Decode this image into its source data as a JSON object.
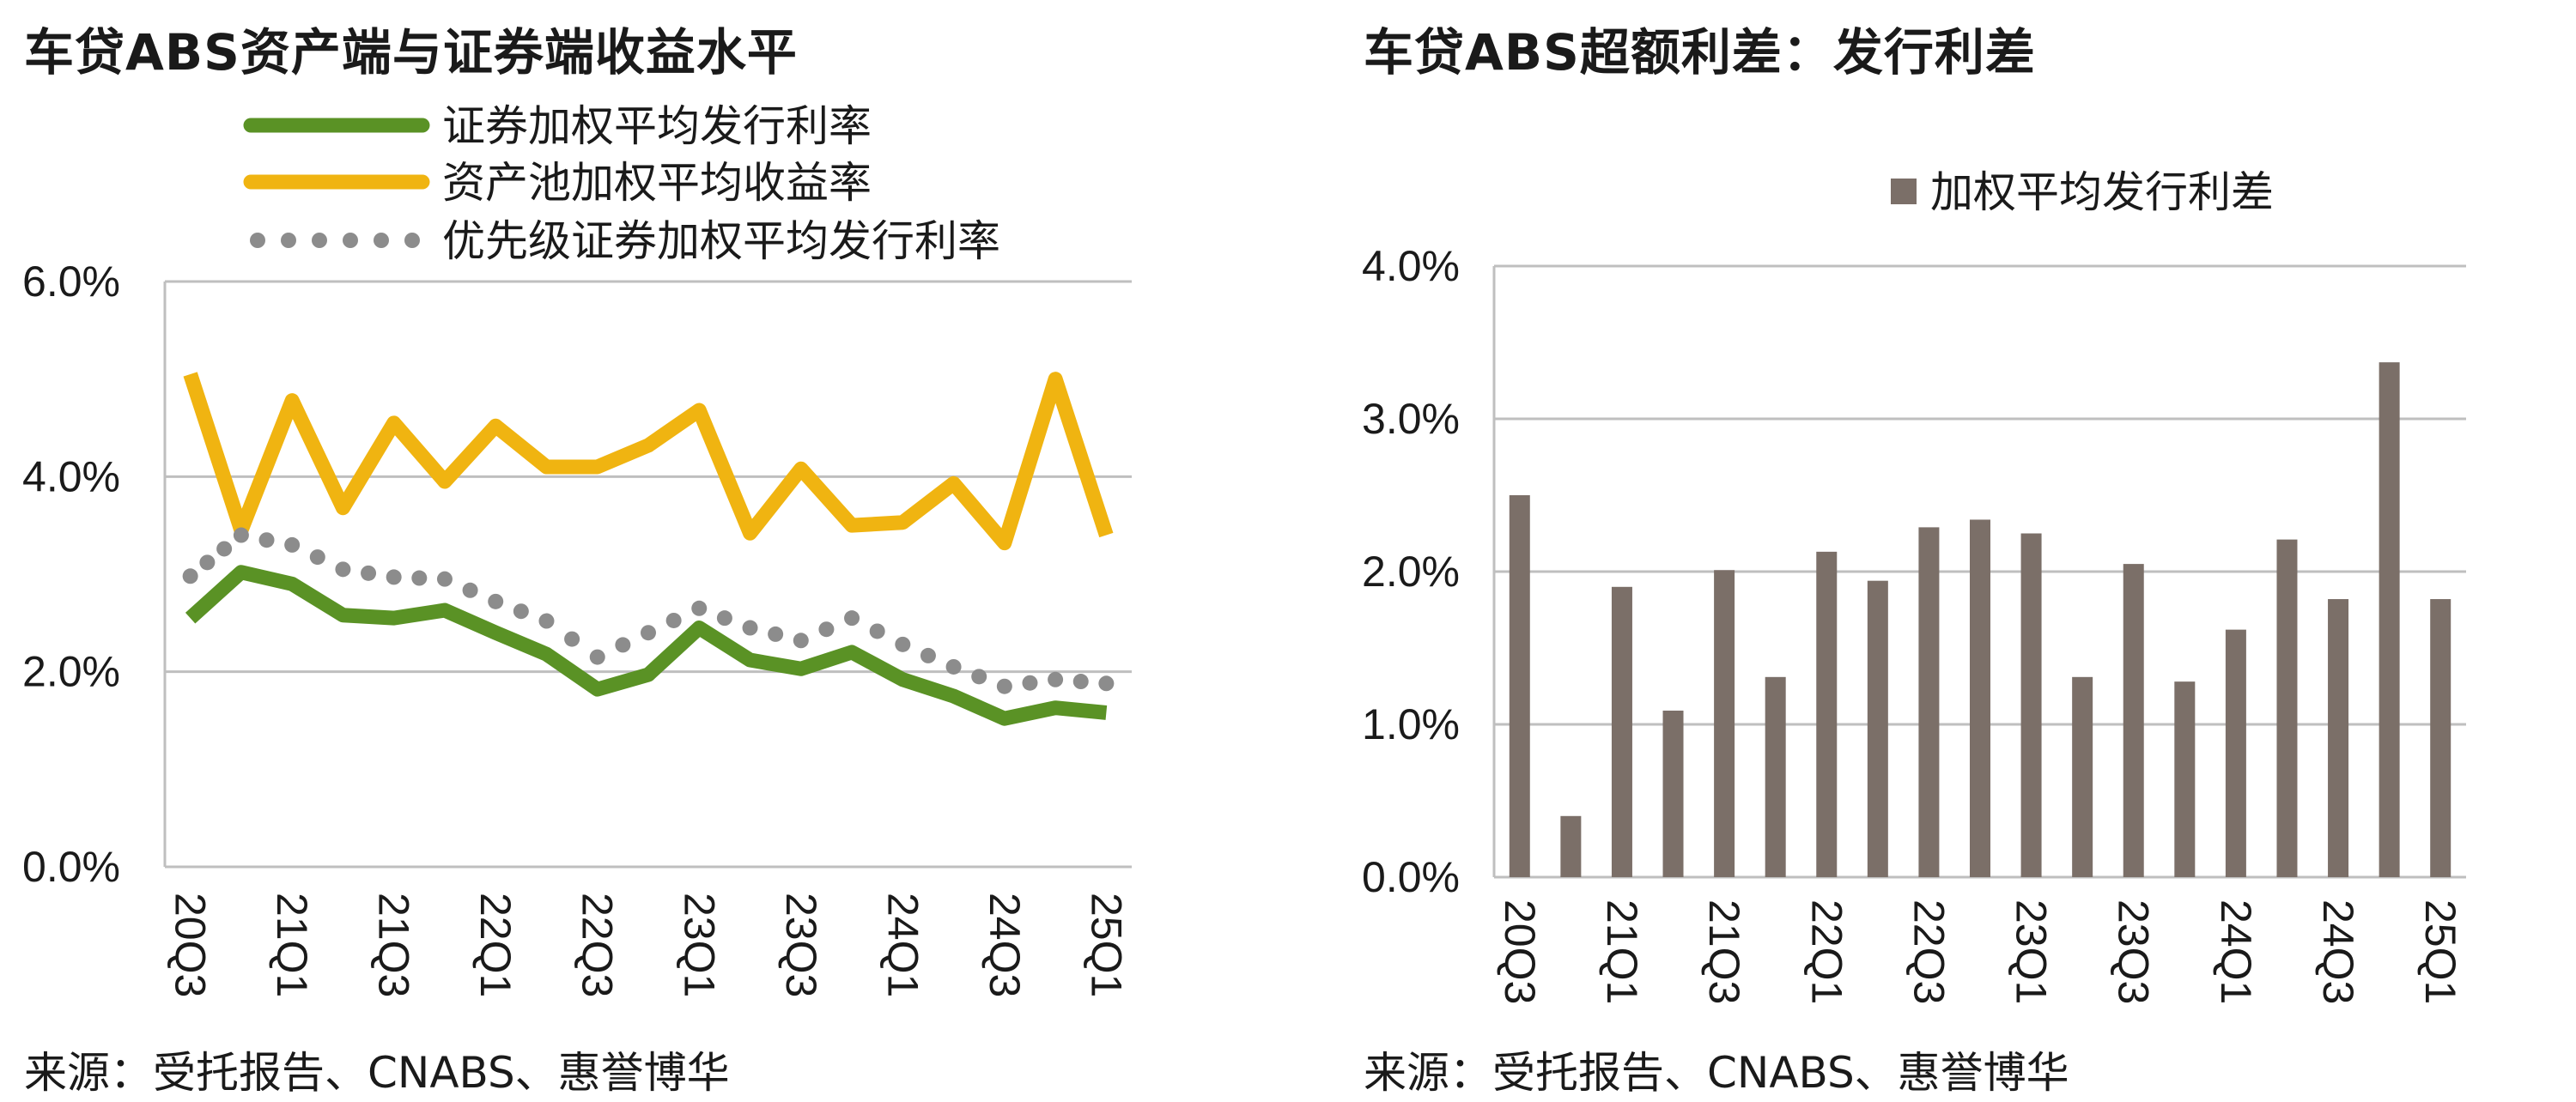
{
  "left": {
    "title": "车贷ABS资产端与证券端收益水平",
    "source": "来源：受托报告、CNABS、惠誉博华"
  },
  "right": {
    "title": "车贷ABS超额利差：发行利差",
    "source": "来源：受托报告、CNABS、惠誉博华"
  },
  "colors": {
    "green": "#5a9225",
    "gold": "#f0b411",
    "gray": "#8c8c8c",
    "bar": "#7b6f68",
    "grid": "#bfbfbf"
  },
  "chart_data": [
    {
      "type": "line",
      "title": "车贷ABS资产端与证券端收益水平",
      "x": [
        "20Q3",
        "20Q4",
        "21Q1",
        "21Q2",
        "21Q3",
        "21Q4",
        "22Q1",
        "22Q2",
        "22Q3",
        "22Q4",
        "23Q1",
        "23Q2",
        "23Q3",
        "23Q4",
        "24Q1",
        "24Q2",
        "24Q3",
        "24Q4",
        "25Q1"
      ],
      "x_tick_labels": [
        "20Q3",
        "21Q1",
        "21Q3",
        "22Q1",
        "22Q3",
        "23Q1",
        "23Q3",
        "24Q1",
        "24Q3",
        "25Q1"
      ],
      "y_tick_labels": [
        "0.0%",
        "2.0%",
        "4.0%",
        "6.0%"
      ],
      "ylim": [
        0,
        6
      ],
      "y_unit": "%",
      "grid": true,
      "legend_position": "top",
      "series": [
        {
          "name": "证券加权平均发行利率",
          "style": "solid",
          "color": "#5a9225",
          "values": [
            2.55,
            3.02,
            2.9,
            2.58,
            2.55,
            2.63,
            2.4,
            2.18,
            1.82,
            1.97,
            2.45,
            2.12,
            2.03,
            2.2,
            1.92,
            1.75,
            1.52,
            1.63,
            1.58
          ]
        },
        {
          "name": "资产池加权平均收益率",
          "style": "solid",
          "color": "#f0b411",
          "values": [
            5.05,
            3.45,
            4.78,
            3.68,
            4.55,
            3.95,
            4.52,
            4.1,
            4.1,
            4.32,
            4.68,
            3.42,
            4.08,
            3.5,
            3.53,
            3.93,
            3.32,
            5.0,
            3.4
          ]
        },
        {
          "name": "优先级证券加权平均发行利率",
          "style": "dotted",
          "color": "#8c8c8c",
          "values": [
            2.98,
            3.4,
            3.3,
            3.05,
            2.97,
            2.95,
            2.72,
            2.52,
            2.15,
            2.4,
            2.65,
            2.45,
            2.32,
            2.55,
            2.28,
            2.05,
            1.85,
            1.92,
            1.88
          ]
        }
      ]
    },
    {
      "type": "bar",
      "title": "车贷ABS超额利差：发行利差",
      "categories": [
        "20Q3",
        "20Q4",
        "21Q1",
        "21Q2",
        "21Q3",
        "21Q4",
        "22Q1",
        "22Q2",
        "22Q3",
        "22Q4",
        "23Q1",
        "23Q2",
        "23Q3",
        "23Q4",
        "24Q1",
        "24Q2",
        "24Q3",
        "24Q4",
        "25Q1"
      ],
      "x_tick_labels": [
        "20Q3",
        "21Q1",
        "21Q3",
        "22Q1",
        "22Q3",
        "23Q1",
        "23Q3",
        "24Q1",
        "24Q3",
        "25Q1"
      ],
      "y_tick_labels": [
        "0.0%",
        "1.0%",
        "2.0%",
        "3.0%",
        "4.0%"
      ],
      "ylim": [
        0,
        4
      ],
      "y_unit": "%",
      "grid": true,
      "legend_position": "top",
      "series": [
        {
          "name": "加权平均发行利差",
          "color": "#7b6f68",
          "values": [
            2.5,
            0.4,
            1.9,
            1.09,
            2.01,
            1.31,
            2.13,
            1.94,
            2.29,
            2.34,
            2.25,
            1.31,
            2.05,
            1.28,
            1.62,
            2.21,
            1.82,
            3.37,
            1.82
          ]
        }
      ]
    }
  ]
}
